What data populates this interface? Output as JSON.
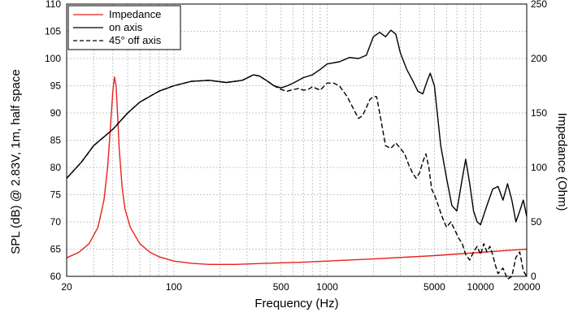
{
  "chart_data": {
    "type": "line",
    "title": "",
    "xlabel": "Frequency (Hz)",
    "ylabel": "SPL (dB) @ 2.83V, 1m, half space",
    "y2label": "Impedance (Ohm)",
    "xscale": "log",
    "xlim": [
      20,
      20000
    ],
    "ylim": [
      60,
      110
    ],
    "y2lim": [
      0,
      250
    ],
    "grid": true,
    "legend_position": "top-left",
    "x_ticks": [
      {
        "value": 20,
        "label": "20"
      },
      {
        "value": 100,
        "label": "100"
      },
      {
        "value": 500,
        "label": "500"
      },
      {
        "value": 1000,
        "label": "1000"
      },
      {
        "value": 5000,
        "label": "5000"
      },
      {
        "value": 10000,
        "label": "10000"
      },
      {
        "value": 20000,
        "label": "20000"
      }
    ],
    "y_ticks": [
      {
        "value": 60,
        "label": "60"
      },
      {
        "value": 65,
        "label": "65"
      },
      {
        "value": 70,
        "label": "70"
      },
      {
        "value": 75,
        "label": "75"
      },
      {
        "value": 80,
        "label": "80"
      },
      {
        "value": 85,
        "label": "85"
      },
      {
        "value": 90,
        "label": "90"
      },
      {
        "value": 95,
        "label": "95"
      },
      {
        "value": 100,
        "label": "100"
      },
      {
        "value": 105,
        "label": "105"
      },
      {
        "value": 110,
        "label": "110"
      }
    ],
    "y2_ticks": [
      {
        "value": 0,
        "label": "0"
      },
      {
        "value": 50,
        "label": "50"
      },
      {
        "value": 100,
        "label": "100"
      },
      {
        "value": 150,
        "label": "150"
      },
      {
        "value": 200,
        "label": "200"
      },
      {
        "value": 250,
        "label": "250"
      }
    ],
    "series": [
      {
        "name": "Impedance",
        "axis": "right",
        "color": "#e8211c",
        "dash": "solid",
        "x": [
          20,
          24,
          28,
          32,
          35,
          37,
          38.5,
          40,
          41,
          42,
          43,
          44,
          46,
          48,
          52,
          60,
          70,
          80,
          100,
          130,
          170,
          250,
          400,
          700,
          1000,
          2000,
          5000,
          10000,
          20000
        ],
        "y": [
          17,
          22,
          30,
          45,
          70,
          100,
          135,
          170,
          183,
          175,
          148,
          118,
          82,
          62,
          45,
          30,
          22,
          18,
          14,
          12,
          11,
          11,
          12,
          13,
          14,
          16,
          19,
          22,
          25
        ]
      },
      {
        "name": "on axis",
        "axis": "left",
        "color": "#000000",
        "dash": "solid",
        "x": [
          20,
          25,
          30,
          40,
          50,
          60,
          80,
          100,
          130,
          170,
          220,
          280,
          330,
          360,
          400,
          450,
          500,
          550,
          600,
          700,
          800,
          900,
          1000,
          1200,
          1400,
          1600,
          1800,
          2000,
          2200,
          2400,
          2600,
          2800,
          3000,
          3300,
          3600,
          3900,
          4200,
          4500,
          4700,
          5000,
          5500,
          6000,
          6500,
          7000,
          7500,
          8000,
          8500,
          9000,
          9500,
          10000,
          11000,
          12000,
          13000,
          14000,
          15000,
          16000,
          17000,
          18000,
          19000,
          20000
        ],
        "y": [
          78,
          81,
          84,
          87,
          90,
          92,
          94,
          95,
          95.8,
          96,
          95.6,
          96,
          97,
          96.8,
          96,
          95,
          94.6,
          95,
          95.5,
          96.5,
          97,
          98,
          99,
          99.4,
          100.2,
          100,
          100.6,
          104,
          104.8,
          104,
          105.2,
          104.5,
          101,
          98,
          96,
          94,
          93.5,
          96,
          97.3,
          95,
          84,
          78,
          73,
          72,
          77,
          81.5,
          77,
          72,
          70,
          69.5,
          73,
          76,
          76.5,
          74,
          77,
          74,
          70,
          72,
          74,
          71
        ]
      },
      {
        "name": "45° off axis",
        "axis": "left",
        "color": "#000000",
        "dash": "dashed",
        "x": [
          20,
          25,
          30,
          40,
          50,
          60,
          80,
          100,
          130,
          170,
          220,
          280,
          330,
          360,
          400,
          450,
          500,
          550,
          600,
          650,
          700,
          750,
          800,
          900,
          1000,
          1100,
          1200,
          1350,
          1500,
          1600,
          1700,
          1800,
          1900,
          2000,
          2100,
          2200,
          2400,
          2600,
          2800,
          3000,
          3200,
          3400,
          3600,
          3800,
          4000,
          4200,
          4400,
          4600,
          4800,
          5000,
          5300,
          5600,
          6000,
          6400,
          6800,
          7200,
          7600,
          8000,
          8500,
          9000,
          9500,
          10000,
          10500,
          11000,
          11500,
          12000,
          12500,
          13000,
          14000,
          15000,
          16000,
          17000,
          18000,
          19000,
          20000
        ],
        "y": [
          78,
          81,
          84,
          87,
          90,
          92,
          94,
          95,
          95.8,
          96,
          95.6,
          96,
          97,
          96.8,
          96,
          95,
          94.3,
          94,
          94.3,
          94.5,
          94.2,
          94.3,
          94.8,
          94.2,
          95.5,
          95.5,
          95,
          93,
          90.5,
          89,
          89.5,
          91,
          92.5,
          93,
          93,
          90,
          84,
          83.5,
          84.5,
          83.5,
          82.5,
          80.5,
          79,
          78,
          79,
          81,
          82.5,
          80,
          76,
          75,
          73,
          71,
          69,
          70,
          68.5,
          67,
          66,
          64,
          63,
          64.5,
          65.5,
          64,
          66,
          64.5,
          65.5,
          64,
          62,
          60.5,
          61.5,
          59.5,
          60,
          63.5,
          64.5,
          61,
          60
        ]
      }
    ],
    "legend": [
      {
        "label": "Impedance",
        "color": "#e8211c",
        "dash": "solid"
      },
      {
        "label": "on axis",
        "color": "#000000",
        "dash": "solid"
      },
      {
        "label": "45° off axis",
        "color": "#000000",
        "dash": "dashed"
      }
    ]
  }
}
